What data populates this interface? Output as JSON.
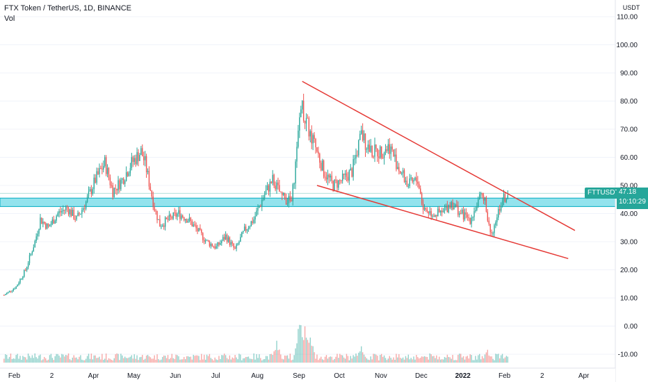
{
  "header": {
    "title": "FTX Token / TetherUS, 1D, BINANCE",
    "indicator": "Vol"
  },
  "price_axis": {
    "unit": "USDT",
    "ticks": [
      "110.00",
      "100.00",
      "90.00",
      "80.00",
      "70.00",
      "60.00",
      "50.00",
      "40.00",
      "30.00",
      "20.00",
      "10.00",
      "0.00",
      "-10.00"
    ]
  },
  "time_axis": {
    "ticks": [
      "Feb",
      "2",
      "Apr",
      "May",
      "Jun",
      "Jul",
      "Aug",
      "Sep",
      "Oct",
      "Nov",
      "Dec",
      "2022",
      "Feb",
      "2",
      "Apr"
    ]
  },
  "last_price": {
    "symbol": "FTTUSDT",
    "price": "47.18",
    "countdown": "10:10:29"
  },
  "colors": {
    "up": "#26a69a",
    "down": "#ef5350",
    "trendline": "#e53935",
    "zone_fill": "#80deea",
    "zone_border": "#00acc1",
    "axis_text": "#131722",
    "grid": "#f0f3fa"
  },
  "chart_data": {
    "type": "candlestick",
    "symbol": "FTTUSDT",
    "interval": "1D",
    "y_unit": "USDT",
    "ylim": [
      -14,
      113
    ],
    "x_range": [
      "2021-02-01",
      "2022-04-10"
    ],
    "price_path": [
      [
        "2021-01-27",
        11
      ],
      [
        "2021-02-05",
        14
      ],
      [
        "2021-02-12",
        20
      ],
      [
        "2021-02-19",
        30
      ],
      [
        "2021-02-23",
        38
      ],
      [
        "2021-03-01",
        35
      ],
      [
        "2021-03-08",
        40
      ],
      [
        "2021-03-15",
        42
      ],
      [
        "2021-03-22",
        38
      ],
      [
        "2021-03-29",
        44
      ],
      [
        "2021-04-05",
        52
      ],
      [
        "2021-04-12",
        58
      ],
      [
        "2021-04-18",
        48
      ],
      [
        "2021-04-25",
        52
      ],
      [
        "2021-05-02",
        58
      ],
      [
        "2021-05-09",
        62
      ],
      [
        "2021-05-12",
        58
      ],
      [
        "2021-05-19",
        42
      ],
      [
        "2021-05-23",
        36
      ],
      [
        "2021-05-30",
        38
      ],
      [
        "2021-06-06",
        40
      ],
      [
        "2021-06-13",
        38
      ],
      [
        "2021-06-20",
        34
      ],
      [
        "2021-06-27",
        30
      ],
      [
        "2021-07-04",
        28
      ],
      [
        "2021-07-11",
        32
      ],
      [
        "2021-07-18",
        27
      ],
      [
        "2021-07-25",
        34
      ],
      [
        "2021-08-01",
        38
      ],
      [
        "2021-08-08",
        46
      ],
      [
        "2021-08-15",
        52
      ],
      [
        "2021-08-22",
        46
      ],
      [
        "2021-08-29",
        44
      ],
      [
        "2021-09-02",
        62
      ],
      [
        "2021-09-05",
        80
      ],
      [
        "2021-09-09",
        72
      ],
      [
        "2021-09-15",
        65
      ],
      [
        "2021-09-22",
        55
      ],
      [
        "2021-09-29",
        50
      ],
      [
        "2021-10-06",
        52
      ],
      [
        "2021-10-13",
        55
      ],
      [
        "2021-10-20",
        68
      ],
      [
        "2021-10-27",
        62
      ],
      [
        "2021-11-03",
        62
      ],
      [
        "2021-11-10",
        64
      ],
      [
        "2021-11-17",
        56
      ],
      [
        "2021-11-24",
        50
      ],
      [
        "2021-12-01",
        52
      ],
      [
        "2021-12-05",
        42
      ],
      [
        "2021-12-12",
        40
      ],
      [
        "2021-12-19",
        40
      ],
      [
        "2021-12-26",
        44
      ],
      [
        "2022-01-02",
        40
      ],
      [
        "2022-01-09",
        38
      ],
      [
        "2022-01-16",
        45
      ],
      [
        "2022-01-20",
        47
      ],
      [
        "2022-01-22",
        38
      ],
      [
        "2022-01-25",
        33
      ],
      [
        "2022-02-01",
        44
      ],
      [
        "2022-02-06",
        47
      ]
    ],
    "volume_peaks": [
      [
        "2021-08-18",
        8
      ],
      [
        "2021-09-04",
        18
      ],
      [
        "2021-09-08",
        14
      ],
      [
        "2021-09-12",
        10
      ],
      [
        "2021-10-20",
        7
      ],
      [
        "2022-01-22",
        5
      ]
    ],
    "last_price": 47.18,
    "annotations": [
      {
        "type": "trendline",
        "from": [
          "2021-09-06",
          87
        ],
        "to": [
          "2022-03-28",
          34
        ]
      },
      {
        "type": "trendline",
        "from": [
          "2021-09-17",
          50
        ],
        "to": [
          "2022-03-23",
          24
        ]
      },
      {
        "type": "support_zone",
        "y": [
          42.5,
          45.5
        ]
      }
    ]
  }
}
